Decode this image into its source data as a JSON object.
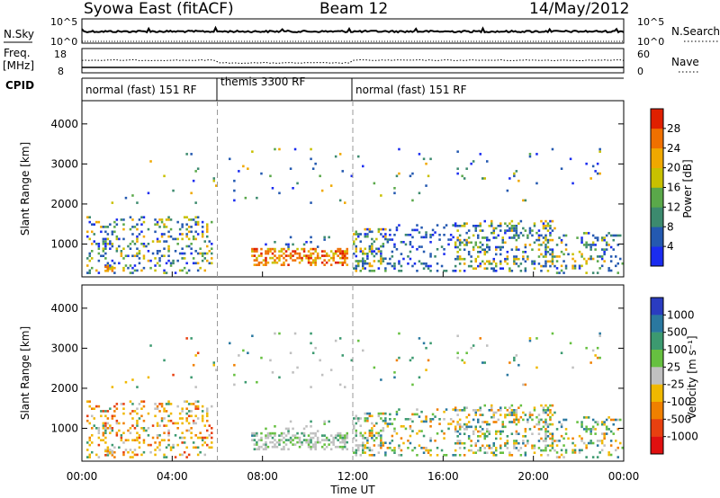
{
  "header": {
    "station": "Syowa East (fitACF)",
    "beam": "Beam 12",
    "date": "14/May/2012"
  },
  "panels": {
    "nsky": {
      "label": "N.Sky",
      "left_ticks": [
        "10^5",
        "10^0"
      ],
      "right_ticks": [
        "10^5",
        "10^0"
      ],
      "right_label": "N.Search"
    },
    "freq": {
      "label_top": "Freq.",
      "label_bottom": "[MHz]",
      "left_ticks": [
        "18",
        "8"
      ],
      "right_ticks": [
        "60",
        "0"
      ],
      "right_label": "Nave"
    },
    "cpid": {
      "label": "CPID",
      "segments": [
        "normal (fast) 151 RF",
        "themis 3300 RF",
        "normal (fast) 151 RF"
      ],
      "boundaries_hours": [
        0,
        6,
        12,
        24
      ]
    }
  },
  "chart_data": [
    {
      "type": "heatmap",
      "parameter": "Power",
      "ylabel": "Slant Range [km]",
      "ylim": [
        180,
        4580
      ],
      "yticks": [
        1000,
        2000,
        3000,
        4000
      ],
      "xlim_hours": [
        0,
        24
      ],
      "colorbar_label": "Power [dB]",
      "colorbar_ticks": [
        "4",
        "8",
        "12",
        "16",
        "20",
        "24",
        "28"
      ],
      "colorbar_range": [
        0,
        30
      ],
      "colors": [
        "#1a2cf0",
        "#2459b0",
        "#3c8a6e",
        "#5aa84a",
        "#c8c000",
        "#f0a800",
        "#f07000",
        "#e02000"
      ]
    },
    {
      "type": "heatmap",
      "parameter": "Velocity",
      "ylabel": "Slant Range [km]",
      "ylim": [
        180,
        4580
      ],
      "yticks": [
        1000,
        2000,
        3000,
        4000
      ],
      "xlim_hours": [
        0,
        24
      ],
      "xticks": [
        "00:00",
        "04:00",
        "08:00",
        "12:00",
        "16:00",
        "20:00",
        "00:00"
      ],
      "xlabel": "Time UT",
      "colorbar_label": "Velocity [m s⁻¹]",
      "colorbar_ticks": [
        "1000",
        "500",
        "100",
        "25",
        "-25",
        "-100",
        "-500",
        "-1000"
      ],
      "colors": [
        "#2a3cc0",
        "#2a78a0",
        "#3c9a70",
        "#66c040",
        "#c0c0c0",
        "#f0b800",
        "#f08000",
        "#e84010",
        "#e01010"
      ]
    }
  ],
  "scatter_regions": [
    {
      "t": [
        0.2,
        5.8
      ],
      "r": [
        250,
        1700
      ],
      "density": 0.22,
      "hue": "mixed"
    },
    {
      "t": [
        1.0,
        1.5
      ],
      "r": [
        300,
        450
      ],
      "density": 0.7,
      "hue": "strong"
    },
    {
      "t": [
        7.5,
        11.8
      ],
      "r": [
        450,
        900
      ],
      "density": 0.5,
      "hue": "strong"
    },
    {
      "t": [
        7.8,
        11.0
      ],
      "r": [
        900,
        1200
      ],
      "density": 0.12,
      "hue": "weak"
    },
    {
      "t": [
        12.0,
        13.5
      ],
      "r": [
        300,
        1400
      ],
      "density": 0.35,
      "hue": "mixed"
    },
    {
      "t": [
        13.5,
        16.5
      ],
      "r": [
        300,
        1500
      ],
      "density": 0.15,
      "hue": "weak"
    },
    {
      "t": [
        16.5,
        21.0
      ],
      "r": [
        300,
        1600
      ],
      "density": 0.28,
      "hue": "mixed"
    },
    {
      "t": [
        21.0,
        24.0
      ],
      "r": [
        250,
        1300
      ],
      "density": 0.2,
      "hue": "mixed"
    },
    {
      "t": [
        1.0,
        23.0
      ],
      "r": [
        2000,
        3400
      ],
      "density": 0.018,
      "hue": "mixed"
    }
  ]
}
